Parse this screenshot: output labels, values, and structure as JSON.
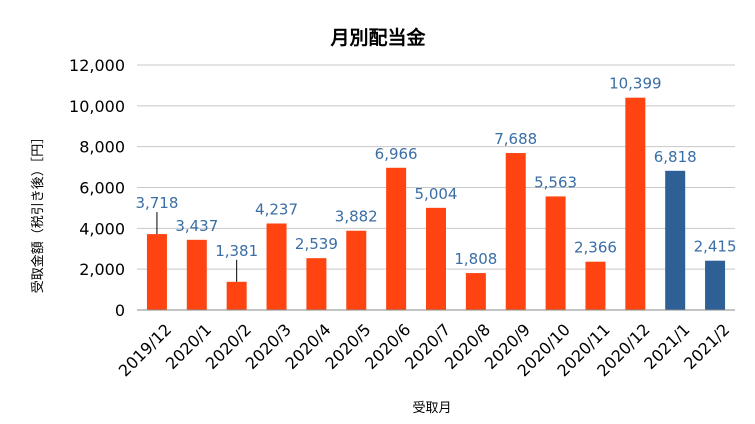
{
  "chart_data": {
    "type": "bar",
    "title": "月別配当金",
    "xlabel": "受取月",
    "ylabel": "受取金額（税引き後）［円］",
    "ylim": [
      0,
      12000
    ],
    "y_ticks": [
      "0",
      "2,000",
      "4,000",
      "6,000",
      "8,000",
      "10,000",
      "12,000"
    ],
    "y_tick_values": [
      0,
      2000,
      4000,
      6000,
      8000,
      10000,
      12000
    ],
    "grid": true,
    "categories": [
      "2019/12",
      "2020/1",
      "2020/2",
      "2020/3",
      "2020/4",
      "2020/5",
      "2020/6",
      "2020/7",
      "2020/8",
      "2020/9",
      "2020/10",
      "2020/11",
      "2020/12",
      "2021/1",
      "2021/2"
    ],
    "values": [
      3718,
      3437,
      1381,
      4237,
      2539,
      3882,
      6966,
      5004,
      1808,
      7688,
      5563,
      2366,
      10399,
      6818,
      2415
    ],
    "value_labels": [
      "3,718",
      "3,437",
      "1,381",
      "4,237",
      "2,539",
      "3,882",
      "6,966",
      "5,004",
      "1,808",
      "7,688",
      "5,563",
      "2,366",
      "10,399",
      "6,818",
      "2,415"
    ],
    "bar_colors": [
      "#ff4411",
      "#ff4411",
      "#ff4411",
      "#ff4411",
      "#ff4411",
      "#ff4411",
      "#ff4411",
      "#ff4411",
      "#ff4411",
      "#ff4411",
      "#ff4411",
      "#ff4411",
      "#ff4411",
      "#2e5f95",
      "#2e5f95"
    ],
    "label_color": "#3a6ea5",
    "grid_color": "#c8c8c8",
    "axis_color": "#888888"
  }
}
